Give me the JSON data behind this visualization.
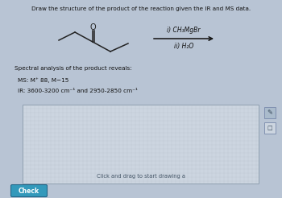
{
  "title": "Draw the structure of the product of the reaction given the IR and MS data.",
  "background_color": "#b8c4d4",
  "reagents": [
    "i) CH₃MgBr",
    "ii) H₂O"
  ],
  "spectral_label": "Spectral analysis of the product reveals:",
  "ms_label": "MS: M⁺ 88, M−15",
  "ir_label": "IR: 3600-3200 cm⁻¹ and 2950-2850 cm⁻¹",
  "drawing_box_text": "Click and drag to start drawing a",
  "check_button": "Check",
  "text_color": "#111111",
  "box_bg": "#ccd5e0",
  "box_border": "#8899aa",
  "check_bg": "#3399bb",
  "check_text": "#ffffff",
  "icon1_bg": "#aabbcc",
  "icon2_bg": "#ccd5e0",
  "arrow_color": "#111111",
  "bond_color": "#222222",
  "grid_color": "#b0bcc8"
}
